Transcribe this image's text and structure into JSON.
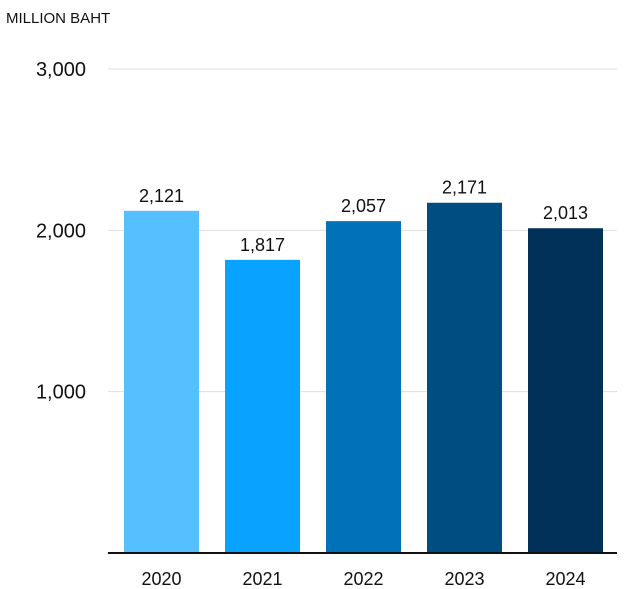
{
  "chart_data": {
    "type": "bar",
    "title": "",
    "unit_label": "MILLION BAHT",
    "xlabel": "",
    "ylabel": "",
    "categories": [
      "2020",
      "2021",
      "2022",
      "2023",
      "2024"
    ],
    "values": [
      2121,
      1817,
      2057,
      2171,
      2013
    ],
    "value_labels": [
      "2,121",
      "1,817",
      "2,057",
      "2,171",
      "2,013"
    ],
    "ylim": [
      0,
      3000
    ],
    "y_ticks": [
      {
        "value": 1000,
        "label": "1,000"
      },
      {
        "value": 2000,
        "label": "2,000"
      },
      {
        "value": 3000,
        "label": "3,000"
      }
    ],
    "grid": true,
    "legend": "none",
    "colors": [
      "#55c0ff",
      "#0aa2ff",
      "#0172b9",
      "#004d82",
      "#013058"
    ],
    "grid_color": "#dedede",
    "axis_color": "#111111"
  }
}
